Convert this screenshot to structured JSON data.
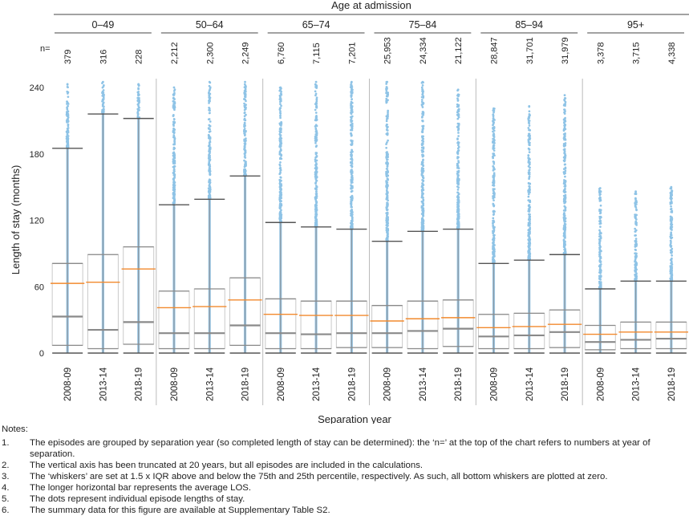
{
  "chart_data": {
    "type": "box",
    "title": "",
    "xlabel": "Separation year",
    "ylabel": "Length of stay (months)",
    "group_axis_label": "Age at admission",
    "n_prefix": "n=",
    "ylim": [
      0,
      240
    ],
    "yticks": [
      0,
      60,
      120,
      180,
      240
    ],
    "colors": {
      "points": "#8ec3e6",
      "box": "#8a8a8a",
      "whisker": "#555555",
      "mean": "#f28a2e",
      "separator": "#bbbbbb"
    },
    "groups": [
      {
        "label": "0–49",
        "boxes": [
          {
            "year": "2008-09",
            "n": "379",
            "whisker_low": 0,
            "q1": 7,
            "median": 33,
            "q3": 81,
            "whisker_high": 185,
            "mean": 63,
            "max_point": 243
          },
          {
            "year": "2013-14",
            "n": "316",
            "whisker_low": 0,
            "q1": 4,
            "median": 21,
            "q3": 89,
            "whisker_high": 216,
            "mean": 64,
            "max_point": 245
          },
          {
            "year": "2018-19",
            "n": "228",
            "whisker_low": 0,
            "q1": 8,
            "median": 28,
            "q3": 96,
            "whisker_high": 212,
            "mean": 76,
            "max_point": 243
          }
        ]
      },
      {
        "label": "50–64",
        "boxes": [
          {
            "year": "2008-09",
            "n": "2,212",
            "whisker_low": 0,
            "q1": 4,
            "median": 18,
            "q3": 56,
            "whisker_high": 134,
            "mean": 41,
            "max_point": 240
          },
          {
            "year": "2013-14",
            "n": "2,300",
            "whisker_low": 0,
            "q1": 4,
            "median": 18,
            "q3": 58,
            "whisker_high": 139,
            "mean": 42,
            "max_point": 245
          },
          {
            "year": "2018-19",
            "n": "2,249",
            "whisker_low": 0,
            "q1": 7,
            "median": 25,
            "q3": 68,
            "whisker_high": 160,
            "mean": 48,
            "max_point": 245
          }
        ]
      },
      {
        "label": "65–74",
        "boxes": [
          {
            "year": "2008-09",
            "n": "6,760",
            "whisker_low": 0,
            "q1": 4,
            "median": 18,
            "q3": 49,
            "whisker_high": 118,
            "mean": 35,
            "max_point": 240
          },
          {
            "year": "2013-14",
            "n": "7,115",
            "whisker_low": 0,
            "q1": 4,
            "median": 17,
            "q3": 47,
            "whisker_high": 114,
            "mean": 34,
            "max_point": 245
          },
          {
            "year": "2018-19",
            "n": "7,201",
            "whisker_low": 0,
            "q1": 5,
            "median": 18,
            "q3": 47,
            "whisker_high": 112,
            "mean": 34,
            "max_point": 245
          }
        ]
      },
      {
        "label": "75–84",
        "boxes": [
          {
            "year": "2008-09",
            "n": "25,953",
            "whisker_low": 0,
            "q1": 5,
            "median": 18,
            "q3": 43,
            "whisker_high": 101,
            "mean": 29,
            "max_point": 245
          },
          {
            "year": "2013-14",
            "n": "24,334",
            "whisker_low": 0,
            "q1": 4,
            "median": 20,
            "q3": 47,
            "whisker_high": 110,
            "mean": 31,
            "max_point": 245
          },
          {
            "year": "2018-19",
            "n": "21,122",
            "whisker_low": 0,
            "q1": 6,
            "median": 22,
            "q3": 48,
            "whisker_high": 112,
            "mean": 32,
            "max_point": 238
          }
        ]
      },
      {
        "label": "85–94",
        "boxes": [
          {
            "year": "2008-09",
            "n": "28,847",
            "whisker_low": 0,
            "q1": 4,
            "median": 15,
            "q3": 35,
            "whisker_high": 81,
            "mean": 23,
            "max_point": 221
          },
          {
            "year": "2013-14",
            "n": "31,701",
            "whisker_low": 0,
            "q1": 4,
            "median": 16,
            "q3": 36,
            "whisker_high": 84,
            "mean": 24,
            "max_point": 223
          },
          {
            "year": "2018-19",
            "n": "31,979",
            "whisker_low": 0,
            "q1": 5,
            "median": 19,
            "q3": 39,
            "whisker_high": 89,
            "mean": 26,
            "max_point": 233
          }
        ]
      },
      {
        "label": "95+",
        "boxes": [
          {
            "year": "2008-09",
            "n": "3,378",
            "whisker_low": 0,
            "q1": 3,
            "median": 10,
            "q3": 25,
            "whisker_high": 58,
            "mean": 17,
            "max_point": 149
          },
          {
            "year": "2013-14",
            "n": "3,715",
            "whisker_low": 0,
            "q1": 4,
            "median": 12,
            "q3": 28,
            "whisker_high": 65,
            "mean": 19,
            "max_point": 146
          },
          {
            "year": "2018-19",
            "n": "4,338",
            "whisker_low": 0,
            "q1": 4,
            "median": 13,
            "q3": 28,
            "whisker_high": 65,
            "mean": 19,
            "max_point": 150
          }
        ]
      }
    ]
  },
  "notes": {
    "title": "Notes:",
    "items": [
      {
        "num": "1.",
        "text": "The episodes are grouped by separation year (so completed length of stay can be determined): the ‘n=’ at the top of the chart refers to numbers at year of separation."
      },
      {
        "num": "2.",
        "text": "The vertical axis has been truncated at 20 years, but all episodes are included in the calculations."
      },
      {
        "num": "3.",
        "text": "The ‘whiskers’ are set at 1.5 x IQR above and below the 75th and 25th percentile, respectively. As such, all bottom whiskers are plotted at zero."
      },
      {
        "num": "4.",
        "text": "The longer horizontal bar represents the average LOS."
      },
      {
        "num": "5.",
        "text": "The dots represent individual episode lengths of stay."
      },
      {
        "num": "6.",
        "text": "The summary data for this figure are available at Supplementary Table S2."
      }
    ]
  }
}
